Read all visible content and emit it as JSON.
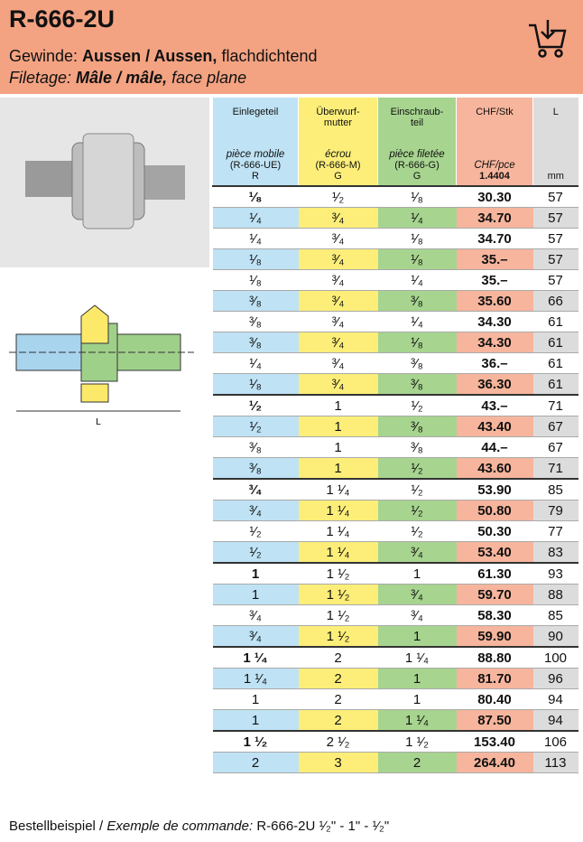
{
  "header": {
    "title": "R-666-2U",
    "line1": {
      "prefix": "Gewinde: ",
      "bold": "Aussen / Aussen,",
      "suffix": " flachdichtend"
    },
    "line2": {
      "prefix": "Filetage: ",
      "bold": "Mâle / mâle,",
      "suffix": " face plane"
    }
  },
  "diagram": {
    "length_label": "L"
  },
  "table": {
    "columns": [
      {
        "title": "Einlegeteil",
        "sub": "pièce mobile",
        "code": "(R-666-UE)",
        "unit": "R"
      },
      {
        "title": "Überwurf-\nmutter",
        "sub": "écrou",
        "code": "(R-666-M)",
        "unit": "G"
      },
      {
        "title": "Einschraub-\nteil",
        "sub": "pièce filetée",
        "code": "(R-666-G)",
        "unit": "G"
      },
      {
        "title": "CHF/Stk",
        "sub": "CHF/pce",
        "unit": "1.4404"
      },
      {
        "title": "L",
        "unit": "mm"
      }
    ],
    "groups": [
      [
        [
          "¹⁄₈",
          "¹⁄₂",
          "¹⁄₈",
          "30.30",
          "57"
        ],
        [
          "¹⁄₄",
          "³⁄₄",
          "¹⁄₄",
          "34.70",
          "57"
        ],
        [
          "¹⁄₄",
          "³⁄₄",
          "¹⁄₈",
          "34.70",
          "57"
        ],
        [
          "¹⁄₈",
          "³⁄₄",
          "¹⁄₈",
          "35.–",
          "57"
        ],
        [
          "¹⁄₈",
          "³⁄₄",
          "¹⁄₄",
          "35.–",
          "57"
        ],
        [
          "³⁄₈",
          "³⁄₄",
          "³⁄₈",
          "35.60",
          "66"
        ],
        [
          "³⁄₈",
          "³⁄₄",
          "¹⁄₄",
          "34.30",
          "61"
        ],
        [
          "³⁄₈",
          "³⁄₄",
          "¹⁄₈",
          "34.30",
          "61"
        ],
        [
          "¹⁄₄",
          "³⁄₄",
          "³⁄₈",
          "36.–",
          "61"
        ],
        [
          "¹⁄₈",
          "³⁄₄",
          "³⁄₈",
          "36.30",
          "61"
        ]
      ],
      [
        [
          "¹⁄₂",
          "1",
          "¹⁄₂",
          "43.–",
          "71"
        ],
        [
          "¹⁄₂",
          "1",
          "³⁄₈",
          "43.40",
          "67"
        ],
        [
          "³⁄₈",
          "1",
          "³⁄₈",
          "44.–",
          "67"
        ],
        [
          "³⁄₈",
          "1",
          "¹⁄₂",
          "43.60",
          "71"
        ]
      ],
      [
        [
          "³⁄₄",
          "1 ¹⁄₄",
          "¹⁄₂",
          "53.90",
          "85"
        ],
        [
          "³⁄₄",
          "1 ¹⁄₄",
          "¹⁄₂",
          "50.80",
          "79"
        ],
        [
          "¹⁄₂",
          "1 ¹⁄₄",
          "¹⁄₂",
          "50.30",
          "77"
        ],
        [
          "¹⁄₂",
          "1 ¹⁄₄",
          "³⁄₄",
          "53.40",
          "83"
        ]
      ],
      [
        [
          "1",
          "1 ¹⁄₂",
          "1",
          "61.30",
          "93"
        ],
        [
          "1",
          "1 ¹⁄₂",
          "³⁄₄",
          "59.70",
          "88"
        ],
        [
          "³⁄₄",
          "1 ¹⁄₂",
          "³⁄₄",
          "58.30",
          "85"
        ],
        [
          "³⁄₄",
          "1 ¹⁄₂",
          "1",
          "59.90",
          "90"
        ]
      ],
      [
        [
          "1 ¹⁄₄",
          "2",
          "1 ¹⁄₄",
          "88.80",
          "100"
        ],
        [
          "1 ¹⁄₄",
          "2",
          "1",
          "81.70",
          "96"
        ],
        [
          "1",
          "2",
          "1",
          "80.40",
          "94"
        ],
        [
          "1",
          "2",
          "1 ¹⁄₄",
          "87.50",
          "94"
        ]
      ],
      [
        [
          "1 ¹⁄₂",
          "2 ¹⁄₂",
          "1 ¹⁄₂",
          "153.40",
          "106"
        ],
        [
          "2",
          "3",
          "2",
          "264.40",
          "113"
        ]
      ]
    ]
  },
  "footer": {
    "label": "Bestellbeispiel / ",
    "label_italic": "Exemple de commande:",
    "code": " R-666-2U ",
    "sizes": "¹⁄₂\" - 1\" - ¹⁄₂\""
  }
}
